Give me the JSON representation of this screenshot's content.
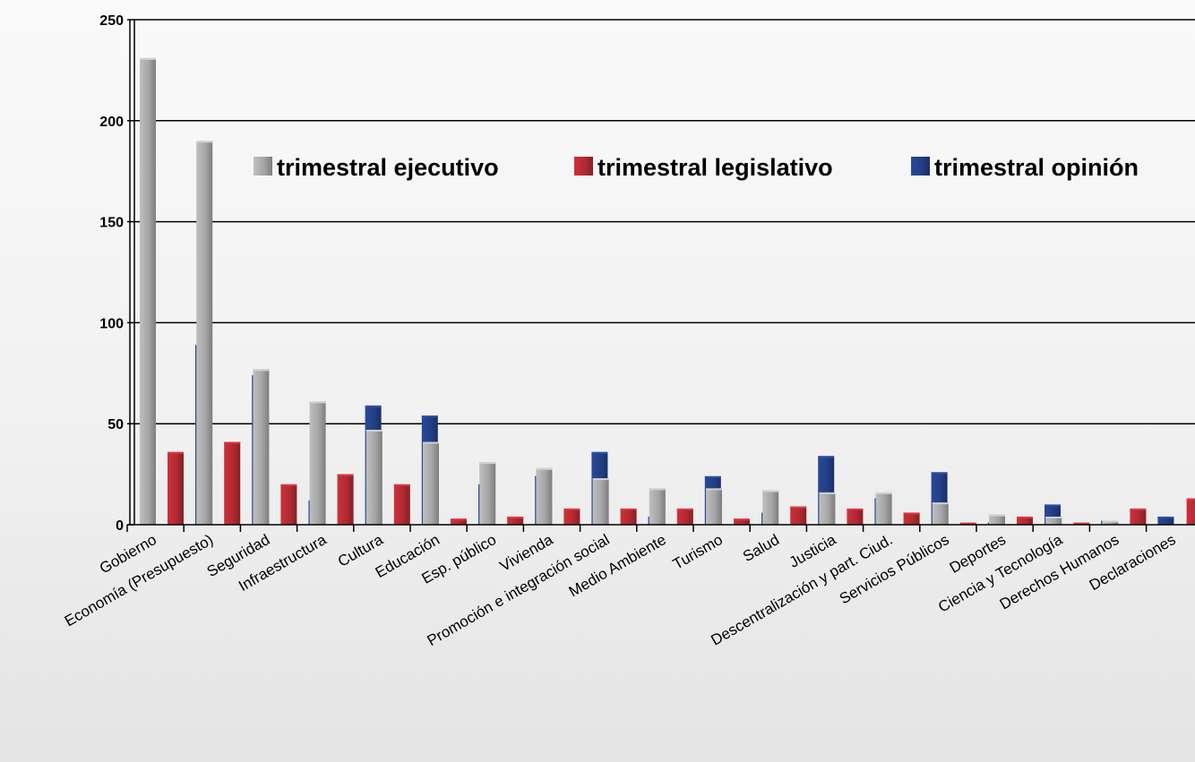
{
  "chart_data": {
    "type": "bar",
    "title": "",
    "xlabel": "",
    "ylabel": "",
    "ylim": [
      0,
      250
    ],
    "yticks": [
      0,
      50,
      100,
      150,
      200,
      250
    ],
    "grid": true,
    "legend_position": "top-right",
    "categories": [
      "Gobierno",
      "Economía (Presupuesto)",
      "Seguridad",
      "Infraestructura",
      "Cultura",
      "Educación",
      "Esp. público",
      "Vivienda",
      "Promoción e integración social",
      "Medio Ambiente",
      "Turismo",
      "Salud",
      "Justicia",
      "Descentralización y part. Ciud.",
      "Servicios Públicos",
      "Deportes",
      "Ciencia y Tecnología",
      "Derechos Humanos",
      "Declaraciones"
    ],
    "series": [
      {
        "name": "trimestral ejecutivo",
        "color": "#a6a6a6",
        "values": [
          231,
          190,
          77,
          61,
          47,
          41,
          31,
          28,
          23,
          18,
          18,
          17,
          16,
          16,
          11,
          5,
          4,
          2,
          0
        ]
      },
      {
        "name": "trimestral legislativo",
        "color": "#b22a32",
        "values": [
          36,
          41,
          20,
          25,
          20,
          3,
          4,
          8,
          8,
          8,
          3,
          9,
          8,
          6,
          1,
          4,
          1,
          8,
          13
        ]
      },
      {
        "name": "trimestral opinión",
        "color": "#233f85",
        "values": [
          89,
          74,
          12,
          59,
          54,
          20,
          24,
          36,
          4,
          24,
          6,
          34,
          13,
          26,
          1,
          10,
          2,
          4,
          3
        ]
      }
    ]
  }
}
